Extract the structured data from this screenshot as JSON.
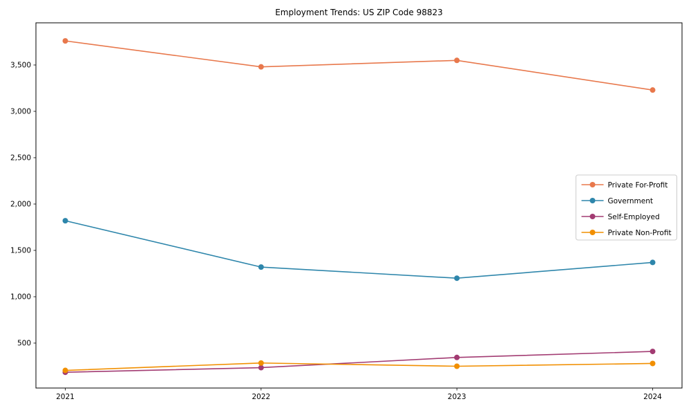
{
  "title": "Employment Trends: US ZIP Code 98823",
  "chart_data": {
    "type": "line",
    "title": "Employment Trends: US ZIP Code 98823",
    "xlabel": "",
    "ylabel": "",
    "x": [
      2021,
      2022,
      2023,
      2024
    ],
    "x_tick_labels": [
      "2021",
      "2022",
      "2023",
      "2024"
    ],
    "y_ticks": [
      500,
      1000,
      1500,
      2000,
      2500,
      3000,
      3500
    ],
    "y_tick_labels": [
      "500",
      "1,000",
      "1,500",
      "2,000",
      "2,500",
      "3,000",
      "3,500"
    ],
    "xlim": [
      2020.85,
      2024.15
    ],
    "ylim": [
      15,
      3955
    ],
    "grid": false,
    "legend_position": "center right",
    "series": [
      {
        "name": "Private For-Profit",
        "color": "#E8784C",
        "values": [
          3760,
          3480,
          3550,
          3230
        ]
      },
      {
        "name": "Government",
        "color": "#2E86AB",
        "values": [
          1820,
          1320,
          1200,
          1370
        ]
      },
      {
        "name": "Self-Employed",
        "color": "#A23B72",
        "values": [
          185,
          235,
          345,
          410
        ]
      },
      {
        "name": "Private Non-Profit",
        "color": "#F18F01",
        "values": [
          205,
          285,
          250,
          280
        ]
      }
    ],
    "style": {
      "spine_color": "#000000",
      "tick_color": "#000000",
      "text_color": "#000000",
      "legend_border_color": "#cccccc",
      "legend_background": "#ffffff",
      "plot_background": "#ffffff"
    }
  }
}
